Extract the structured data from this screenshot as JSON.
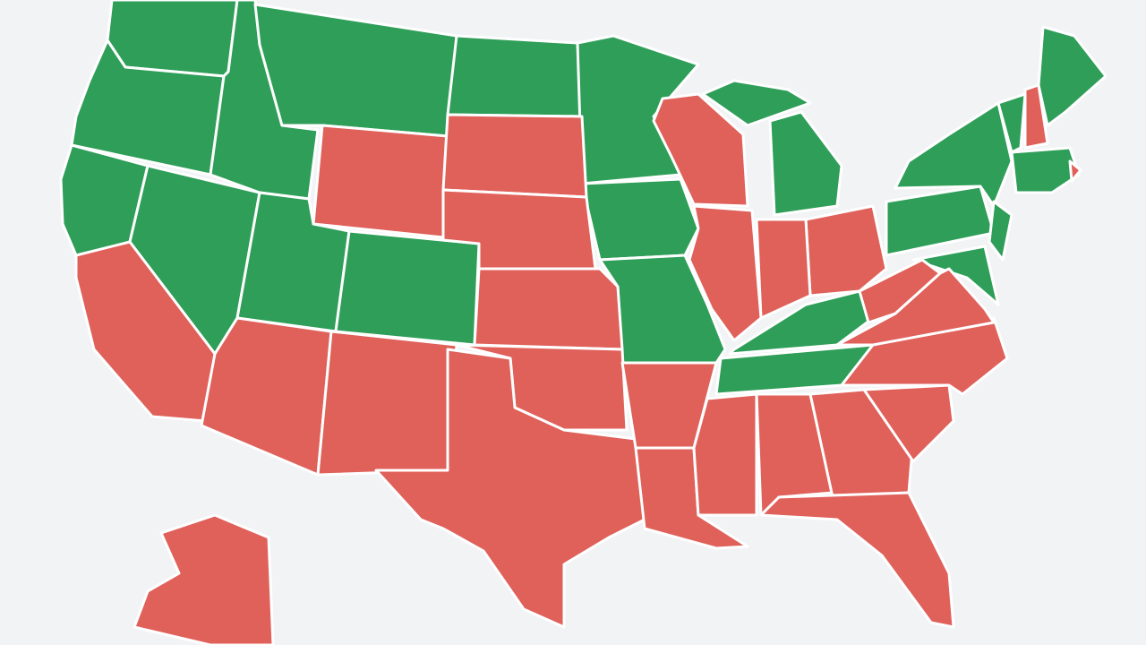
{
  "map": {
    "colors": [
      "#2e9e58",
      "#e0605a"
    ]
  }
}
